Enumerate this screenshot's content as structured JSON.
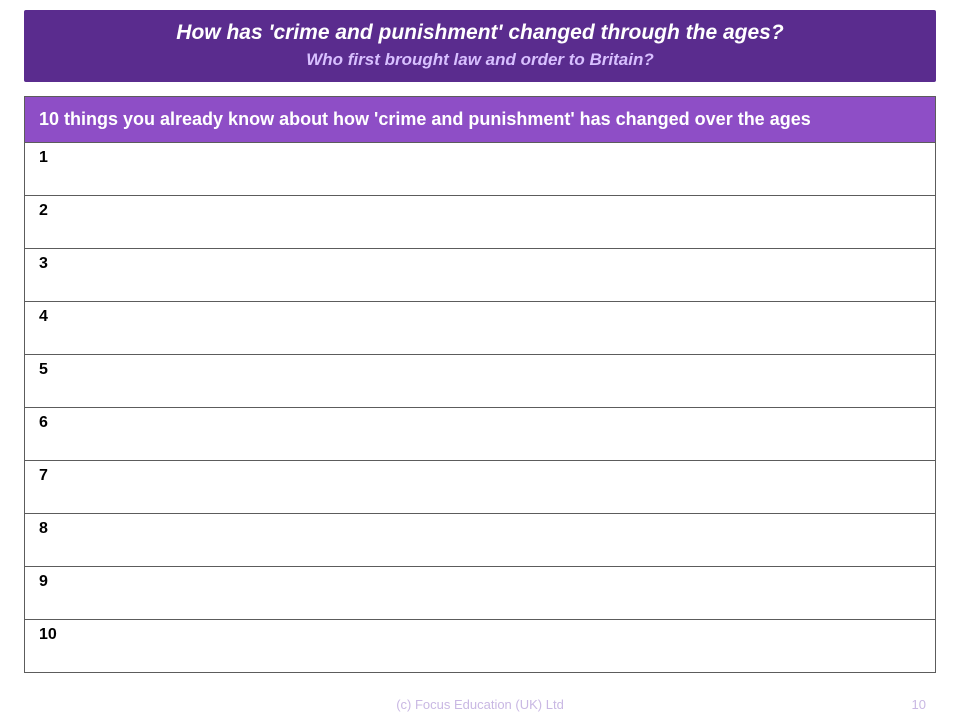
{
  "colors": {
    "header_bg": "#5a2c8e",
    "title_text": "#ffffff",
    "subtitle_text": "#d8c0ff",
    "sheet_header_bg": "#8e4ec6",
    "sheet_header_text": "#ffffff",
    "grid": "#5c5c5c",
    "footer_text": "#c9b8e3"
  },
  "header": {
    "title": "How has 'crime and punishment' changed through the ages?",
    "subtitle": "Who first brought law and order to Britain?"
  },
  "sheet": {
    "heading": "10 things you already know about how 'crime and punishment'  has changed over the ages",
    "rows": [
      "1",
      "2",
      "3",
      "4",
      "5",
      "6",
      "7",
      "8",
      "9",
      "10"
    ]
  },
  "footer": {
    "copyright": "(c) Focus Education (UK) Ltd",
    "page_number": "10"
  }
}
